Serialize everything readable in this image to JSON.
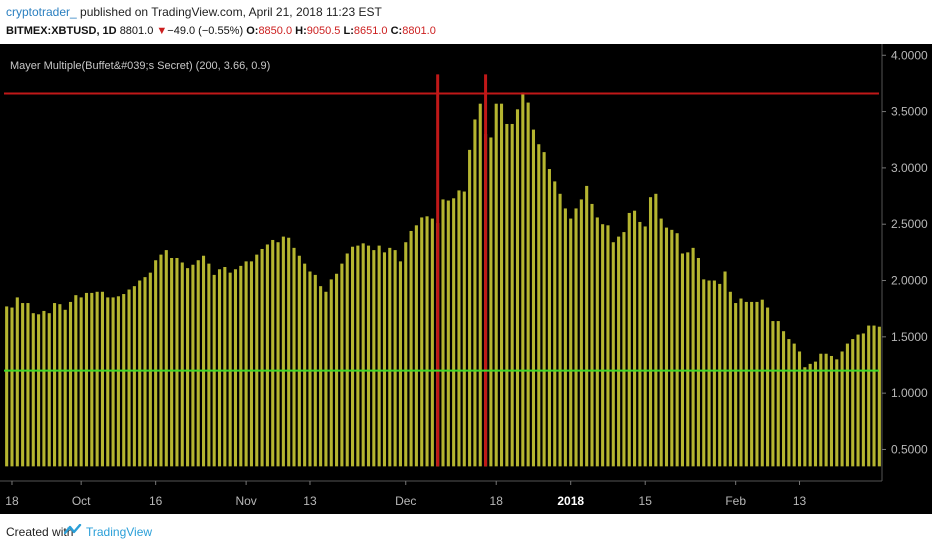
{
  "header": {
    "author": "cryptotrader_",
    "published_text": " published on TradingView.com, April 21, 2018 11:23 EST",
    "symbol": "BITMEX:XBTUSD, 1D",
    "last": "8801.0",
    "change": "−49.0 (−0.55%)",
    "o_label": "O:",
    "o_value": "8850.0",
    "h_label": "H:",
    "h_value": "9050.5",
    "l_label": "L:",
    "l_value": "8651.0",
    "c_label": "C:",
    "c_value": "8801.0"
  },
  "footer": {
    "created_with": "Created with",
    "brand": "TradingView"
  },
  "colors": {
    "bar": "#b5b530",
    "green_line": "#3ed62a",
    "red_line": "#c01818",
    "axis_text": "#b8b8b8",
    "background": "#000000"
  },
  "chart_data": {
    "type": "bar",
    "indicator_label": "Mayer Multiple(Buffet&#039;s Secret) (200, 3.66, 0.9)",
    "y_ticks": [
      "4.0000",
      "3.5000",
      "3.0000",
      "2.5000",
      "2.0000",
      "1.5000",
      "1.0000",
      "0.5000"
    ],
    "y_tick_values": [
      4.0,
      3.5,
      3.0,
      2.5,
      2.0,
      1.5,
      1.0,
      0.5
    ],
    "x_ticks": [
      {
        "label": "18",
        "bar": 1,
        "bold": false
      },
      {
        "label": "Oct",
        "bar": 14,
        "bold": false
      },
      {
        "label": "16",
        "bar": 28,
        "bold": false
      },
      {
        "label": "Nov",
        "bar": 45,
        "bold": false
      },
      {
        "label": "13",
        "bar": 57,
        "bold": false
      },
      {
        "label": "Dec",
        "bar": 75,
        "bold": false
      },
      {
        "label": "18",
        "bar": 92,
        "bold": false
      },
      {
        "label": "2018",
        "bar": 106,
        "bold": true
      },
      {
        "label": "15",
        "bar": 120,
        "bold": false
      },
      {
        "label": "Feb",
        "bar": 137,
        "bold": false
      },
      {
        "label": "13",
        "bar": 149,
        "bold": false
      }
    ],
    "ylim": [
      0.22,
      4.1
    ],
    "bar_floor": 0.35,
    "upper_level": 3.66,
    "lower_level": 1.2,
    "vertical_markers_bar": [
      81,
      90
    ],
    "values": [
      1.77,
      1.76,
      1.85,
      1.8,
      1.8,
      1.71,
      1.7,
      1.73,
      1.71,
      1.8,
      1.79,
      1.74,
      1.81,
      1.87,
      1.85,
      1.89,
      1.89,
      1.9,
      1.9,
      1.85,
      1.85,
      1.86,
      1.88,
      1.92,
      1.95,
      2.0,
      2.03,
      2.07,
      2.18,
      2.23,
      2.27,
      2.2,
      2.2,
      2.16,
      2.11,
      2.14,
      2.18,
      2.22,
      2.15,
      2.05,
      2.1,
      2.12,
      2.07,
      2.1,
      2.13,
      2.17,
      2.17,
      2.23,
      2.28,
      2.32,
      2.36,
      2.34,
      2.39,
      2.38,
      2.29,
      2.22,
      2.15,
      2.08,
      2.05,
      1.95,
      1.9,
      2.01,
      2.06,
      2.15,
      2.24,
      2.3,
      2.31,
      2.33,
      2.31,
      2.27,
      2.31,
      2.25,
      2.29,
      2.27,
      2.17,
      2.34,
      2.44,
      2.49,
      2.56,
      2.57,
      2.55,
      2.51,
      2.72,
      2.71,
      2.73,
      2.8,
      2.79,
      3.16,
      3.43,
      3.57,
      3.3,
      3.27,
      3.57,
      3.57,
      3.39,
      3.39,
      3.52,
      3.67,
      3.58,
      3.34,
      3.21,
      3.14,
      2.99,
      2.88,
      2.77,
      2.64,
      2.55,
      2.64,
      2.72,
      2.84,
      2.68,
      2.56,
      2.5,
      2.49,
      2.34,
      2.39,
      2.43,
      2.6,
      2.62,
      2.52,
      2.48,
      2.74,
      2.77,
      2.55,
      2.47,
      2.45,
      2.42,
      2.24,
      2.25,
      2.29,
      2.2,
      2.01,
      2.0,
      2.0,
      1.97,
      2.08,
      1.9,
      1.8,
      1.84,
      1.81,
      1.81,
      1.81,
      1.83,
      1.76,
      1.64,
      1.64,
      1.55,
      1.48,
      1.44,
      1.37,
      1.23,
      1.26,
      1.28,
      1.35,
      1.35,
      1.33,
      1.3,
      1.37,
      1.44,
      1.48,
      1.52,
      1.53,
      1.6,
      1.6,
      1.59
    ]
  }
}
